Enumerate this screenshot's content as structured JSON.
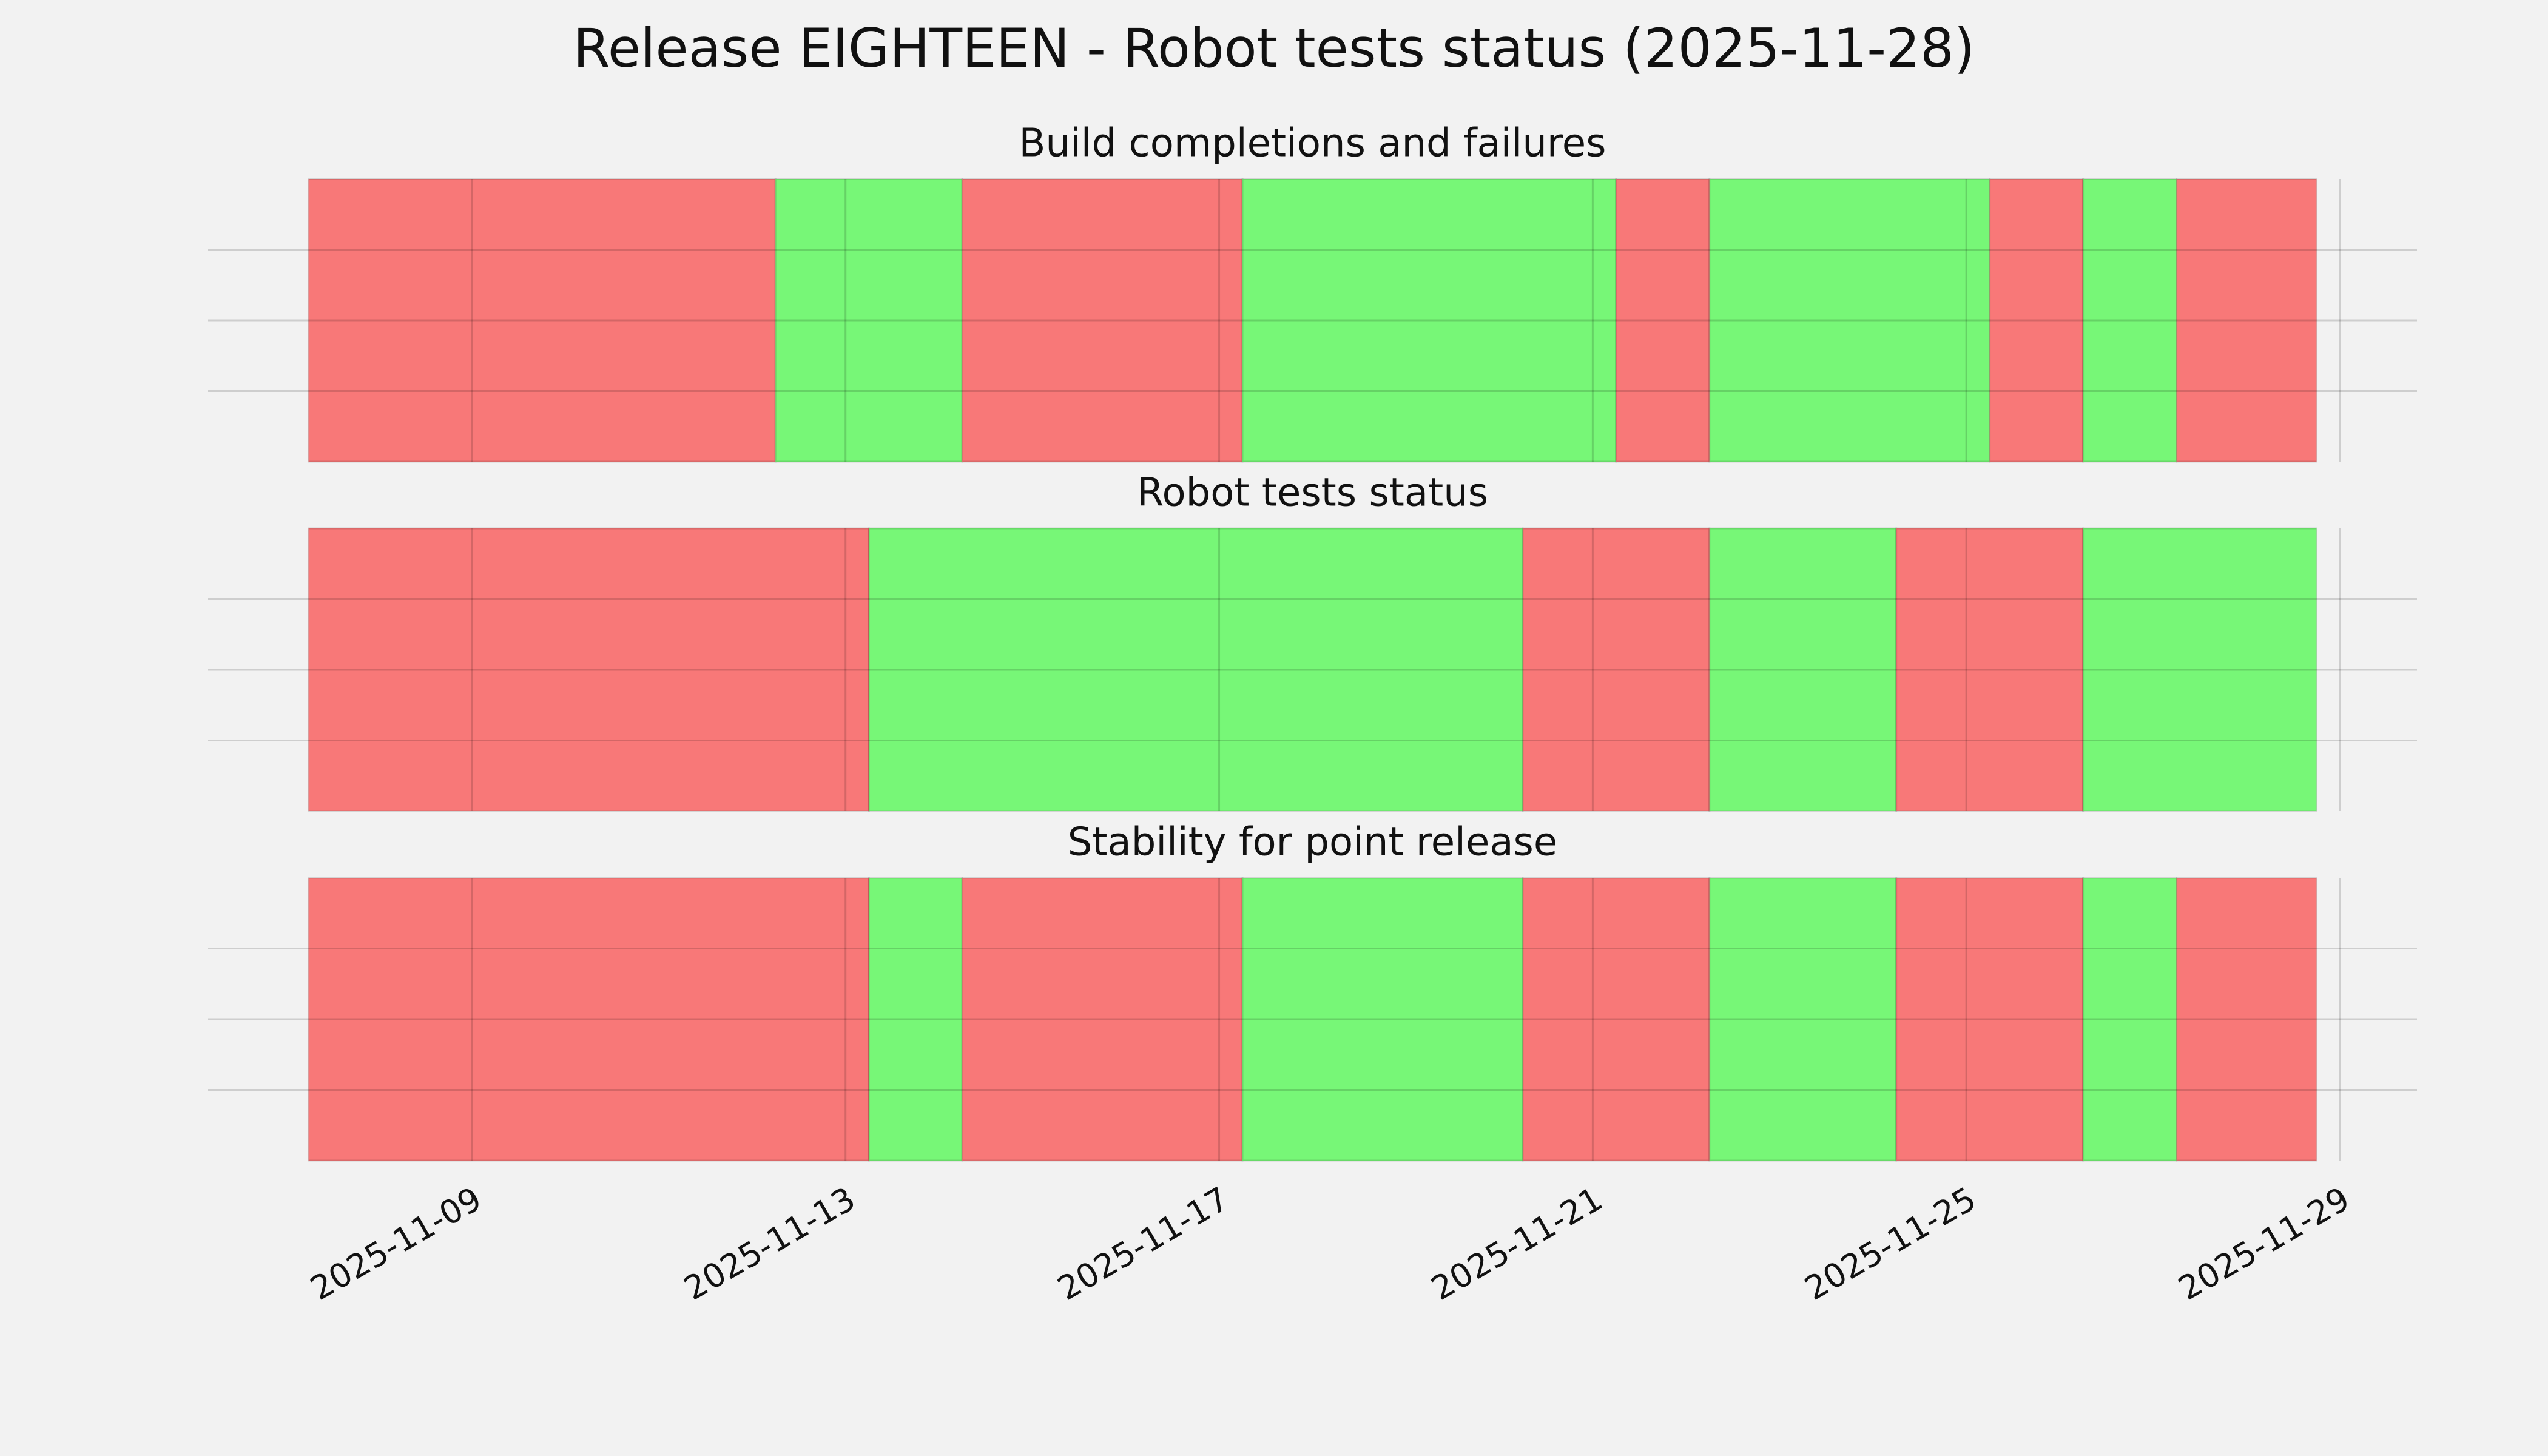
{
  "title": "Release EIGHTEEN - Robot tests status (2025-11-28)",
  "x_axis": {
    "xlim": [
      "2025-11-06T04:12Z",
      "2025-11-29T19:48Z"
    ],
    "xticks": [
      "2025-11-09",
      "2025-11-13",
      "2025-11-17",
      "2025-11-21",
      "2025-11-25",
      "2025-11-29"
    ]
  },
  "chart_data": [
    {
      "type": "timeline",
      "title": "Build completions and failures",
      "edges": [
        "2025-11-07T06:00Z",
        "2025-11-12T06:00Z",
        "2025-11-14T06:00Z",
        "2025-11-17T06:00Z",
        "2025-11-21T06:00Z",
        "2025-11-22T06:00Z",
        "2025-11-25T06:00Z",
        "2025-11-26T06:00Z",
        "2025-11-27T06:00Z",
        "2025-11-28T18:00Z"
      ],
      "colors": [
        "#f87878",
        "#77f777",
        "#f87878",
        "#77f777",
        "#f87878",
        "#77f777",
        "#f87878",
        "#77f777",
        "#f87878"
      ],
      "ylim": [
        0,
        1
      ],
      "yticks": [
        0.25,
        0.5,
        0.75
      ],
      "grid": true
    },
    {
      "type": "timeline",
      "title": "Robot tests status",
      "edges": [
        "2025-11-07T06:00Z",
        "2025-11-13T06:00Z",
        "2025-11-20T06:00Z",
        "2025-11-22T06:00Z",
        "2025-11-24T06:00Z",
        "2025-11-26T06:00Z",
        "2025-11-28T18:00Z"
      ],
      "colors": [
        "#f87878",
        "#77f777",
        "#f87878",
        "#77f777",
        "#f87878",
        "#77f777"
      ],
      "ylim": [
        0,
        1
      ],
      "yticks": [
        0.25,
        0.5,
        0.75
      ],
      "grid": true
    },
    {
      "type": "timeline",
      "title": "Stability for point release",
      "edges": [
        "2025-11-07T06:00Z",
        "2025-11-13T06:00Z",
        "2025-11-14T06:00Z",
        "2025-11-17T06:00Z",
        "2025-11-20T06:00Z",
        "2025-11-22T06:00Z",
        "2025-11-24T06:00Z",
        "2025-11-26T06:00Z",
        "2025-11-27T06:00Z",
        "2025-11-28T18:00Z"
      ],
      "colors": [
        "#f87878",
        "#77f777",
        "#f87878",
        "#77f777",
        "#f87878",
        "#77f777",
        "#f87878",
        "#77f777",
        "#f87878"
      ],
      "ylim": [
        0,
        1
      ],
      "yticks": [
        0.25,
        0.5,
        0.75
      ],
      "grid": true
    }
  ]
}
